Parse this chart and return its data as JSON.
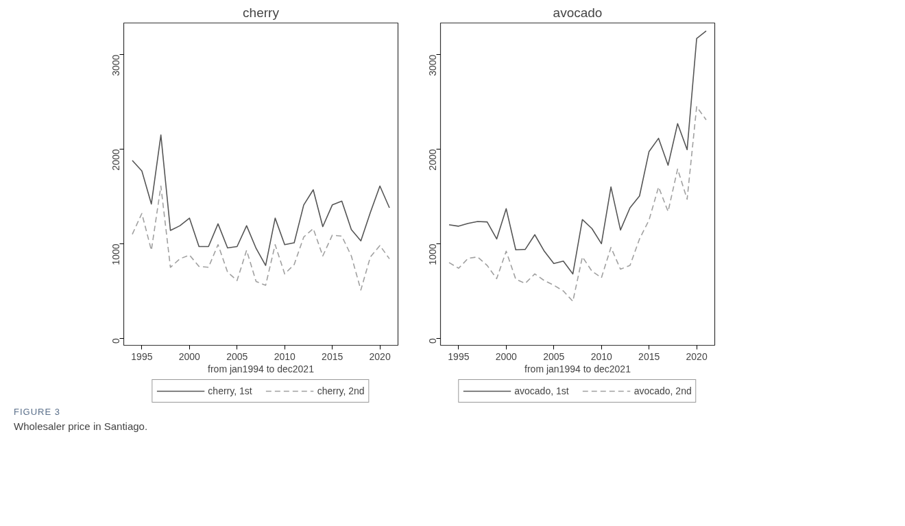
{
  "chart_data": [
    {
      "type": "line",
      "title": "cherry",
      "xlabel": "from jan1994 to dec2021",
      "xlim": [
        1993.1,
        2021.9
      ],
      "xticks": [
        1995,
        2000,
        2005,
        2010,
        2015,
        2020
      ],
      "ylim": [
        -75,
        3335
      ],
      "yticks": [
        0,
        1000,
        2000,
        3000
      ],
      "grid": false,
      "legend": "bottom",
      "annotations": [
        "FIGURE 3",
        "Wholesaler price in Santiago."
      ],
      "x": [
        1994,
        1995,
        1996,
        1997,
        1998,
        1999,
        2000,
        2001,
        2002,
        2003,
        2004,
        2005,
        2006,
        2007,
        2008,
        2009,
        2010,
        2011,
        2012,
        2013,
        2014,
        2015,
        2016,
        2017,
        2018,
        2019,
        2020,
        2021
      ],
      "series": [
        {
          "name": "cherry, 1st",
          "color": "#555555",
          "line_style": "solid",
          "values": [
            1880,
            1770,
            1420,
            2150,
            1140,
            1190,
            1270,
            970,
            970,
            1210,
            955,
            970,
            1190,
            950,
            770,
            1270,
            990,
            1010,
            1410,
            1570,
            1180,
            1410,
            1450,
            1150,
            1030,
            1330,
            1610,
            1380
          ]
        },
        {
          "name": "cherry, 2nd",
          "color": "#a0a0a0",
          "line_style": "dashed",
          "values": [
            1100,
            1320,
            930,
            1610,
            750,
            840,
            880,
            760,
            750,
            990,
            700,
            610,
            930,
            600,
            560,
            990,
            680,
            780,
            1070,
            1160,
            870,
            1090,
            1080,
            870,
            510,
            860,
            980,
            840
          ]
        }
      ]
    },
    {
      "type": "line",
      "title": "avocado",
      "xlabel": "from jan1994 to dec2021",
      "xlim": [
        1993.1,
        2021.9
      ],
      "xticks": [
        1995,
        2000,
        2005,
        2010,
        2015,
        2020
      ],
      "ylim": [
        -75,
        3335
      ],
      "yticks": [
        0,
        1000,
        2000,
        3000
      ],
      "grid": false,
      "legend": "bottom",
      "x": [
        1994,
        1995,
        1996,
        1997,
        1998,
        1999,
        2000,
        2001,
        2002,
        2003,
        2004,
        2005,
        2006,
        2007,
        2008,
        2009,
        2010,
        2011,
        2012,
        2013,
        2014,
        2015,
        2016,
        2017,
        2018,
        2019,
        2020,
        2021
      ],
      "series": [
        {
          "name": "avocado, 1st",
          "color": "#555555",
          "line_style": "solid",
          "values": [
            1200,
            1185,
            1215,
            1235,
            1230,
            1050,
            1370,
            935,
            940,
            1095,
            920,
            790,
            815,
            680,
            1255,
            1160,
            1000,
            1600,
            1145,
            1380,
            1505,
            1975,
            2115,
            1830,
            2270,
            1995,
            3170,
            3250
          ]
        },
        {
          "name": "avocado, 2nd",
          "color": "#a0a0a0",
          "line_style": "dashed",
          "values": [
            800,
            740,
            845,
            860,
            770,
            630,
            920,
            625,
            580,
            680,
            610,
            560,
            500,
            390,
            860,
            710,
            640,
            960,
            730,
            770,
            1050,
            1250,
            1600,
            1340,
            1790,
            1470,
            2450,
            2310
          ]
        }
      ]
    }
  ]
}
